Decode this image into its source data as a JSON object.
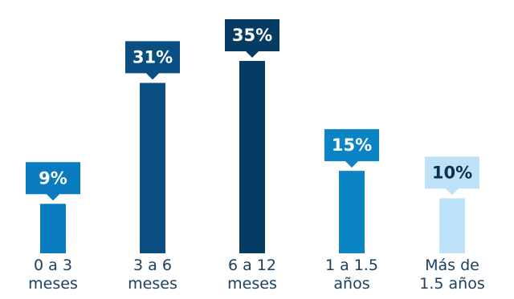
{
  "chart_data": {
    "type": "bar",
    "title": "",
    "xlabel": "",
    "ylabel": "",
    "ylim": [
      0,
      35
    ],
    "grid": false,
    "legend": "none",
    "value_suffix": "%",
    "categories": [
      [
        "0 a 3",
        "meses"
      ],
      [
        "3 a 6",
        "meses"
      ],
      [
        "6 a 12",
        "meses"
      ],
      [
        "1 a 1.5",
        "años"
      ],
      [
        "Más de",
        "1.5 años"
      ]
    ],
    "values": [
      9,
      31,
      35,
      15,
      10
    ],
    "colors": [
      "#0a7bbf",
      "#0b4f82",
      "#063c63",
      "#0a84c4",
      "#bde2f7"
    ],
    "label_text_colors": [
      "#ffffff",
      "#ffffff",
      "#ffffff",
      "#ffffff",
      "#0d2f4e"
    ]
  }
}
